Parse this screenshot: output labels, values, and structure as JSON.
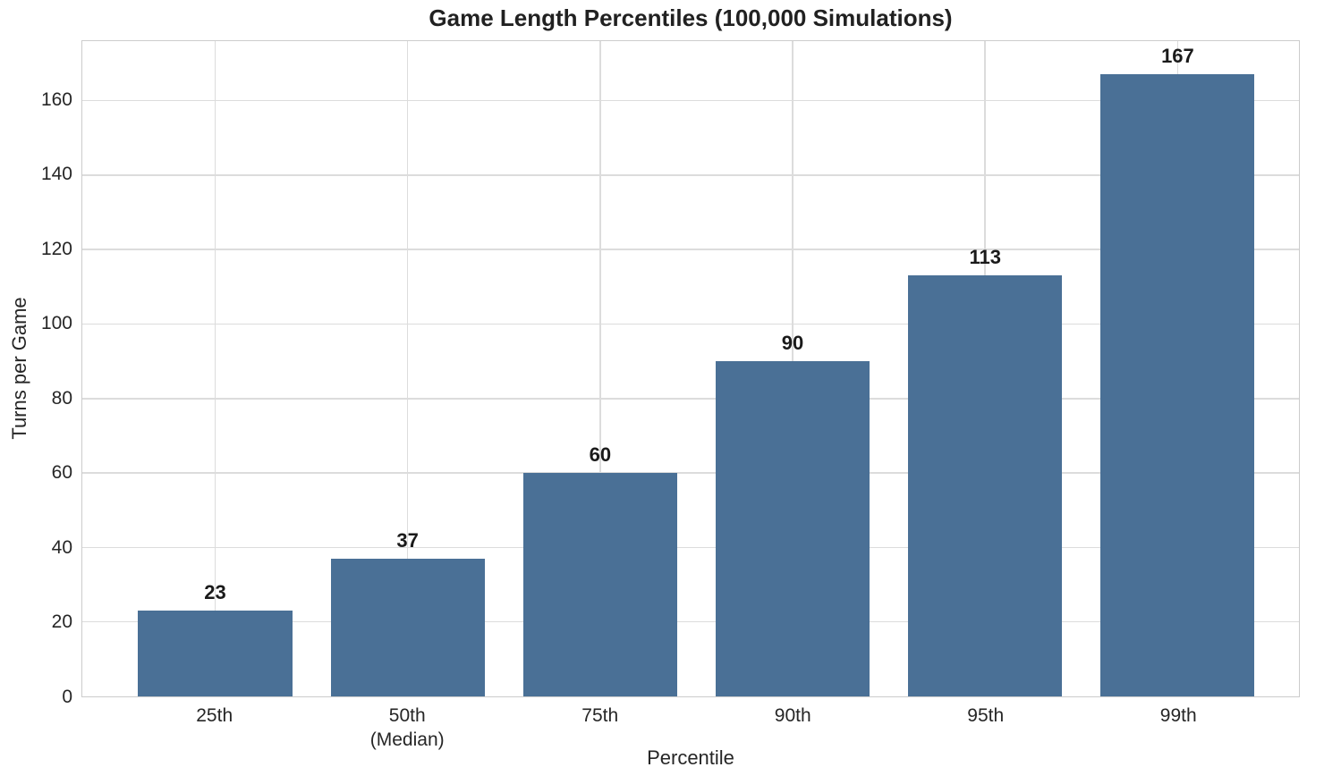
{
  "chart_data": {
    "type": "bar",
    "title": "Game Length Percentiles (100,000 Simulations)",
    "xlabel": "Percentile",
    "ylabel": "Turns per Game",
    "categories": [
      "25th",
      "50th\n(Median)",
      "75th",
      "90th",
      "95th",
      "99th"
    ],
    "values": [
      23,
      37,
      60,
      90,
      113,
      167
    ],
    "bar_labels": [
      "23",
      "37",
      "60",
      "90",
      "113",
      "167"
    ],
    "yticks": [
      0,
      20,
      40,
      60,
      80,
      100,
      120,
      140,
      160
    ],
    "ylim": [
      0,
      176
    ],
    "xlim": [
      -0.69,
      5.63
    ],
    "bar_width_units": 0.8,
    "grid": true,
    "legend": "none",
    "colors": {
      "bar": "#4A7096",
      "grid": "#DCDCDC",
      "spine": "#CCCCCC",
      "text": "#262626",
      "value_label": "#1A1A1A",
      "background": "#FFFFFF"
    }
  }
}
